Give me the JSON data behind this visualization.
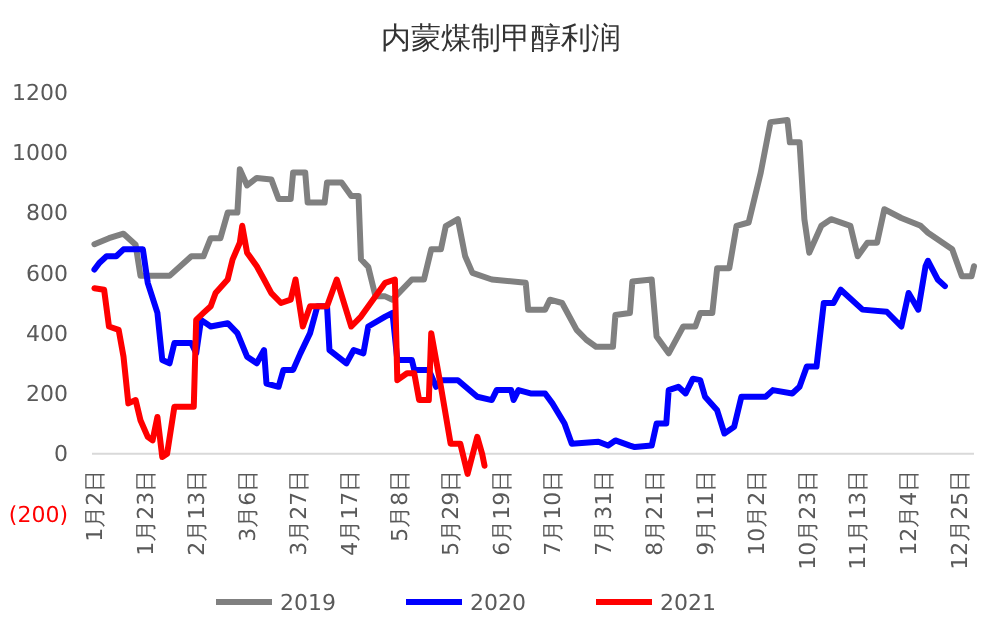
{
  "chart_data": {
    "type": "line",
    "title": "内蒙煤制甲醇利润",
    "legend": "bottom",
    "line_style": "solid",
    "xlim": [
      "--01-01",
      "--12-31"
    ],
    "xticks": [
      {
        "value": "--01-02",
        "label": "1月2日"
      },
      {
        "value": "--01-23",
        "label": "1月23日"
      },
      {
        "value": "--02-13",
        "label": "2月13日"
      },
      {
        "value": "--03-06",
        "label": "3月6日"
      },
      {
        "value": "--03-27",
        "label": "3月27日"
      },
      {
        "value": "--04-17",
        "label": "4月17日"
      },
      {
        "value": "--05-08",
        "label": "5月8日"
      },
      {
        "value": "--05-29",
        "label": "5月29日"
      },
      {
        "value": "--06-19",
        "label": "6月19日"
      },
      {
        "value": "--07-10",
        "label": "7月10日"
      },
      {
        "value": "--07-31",
        "label": "7月31日"
      },
      {
        "value": "--08-21",
        "label": "8月21日"
      },
      {
        "value": "--09-11",
        "label": "9月11日"
      },
      {
        "value": "--10-02",
        "label": "10月2日"
      },
      {
        "value": "--10-23",
        "label": "10月23日"
      },
      {
        "value": "--11-13",
        "label": "11月13日"
      },
      {
        "value": "--12-04",
        "label": "12月4日"
      },
      {
        "value": "--12-25",
        "label": "12月25日"
      }
    ],
    "ylim": [
      -200,
      1200
    ],
    "yticks": [
      {
        "value": -200,
        "label": "(200)"
      },
      0,
      200,
      400,
      600,
      800,
      1000,
      1200
    ],
    "series": [
      {
        "name": "2019",
        "color": "#808080",
        "x": [
          "--01-02",
          "--01-08",
          "--01-14",
          "--01-19",
          "--01-21",
          "--02-02",
          "--02-11",
          "--02-16",
          "--02-19",
          "--02-23",
          "--02-26",
          "--03-02",
          "--03-03",
          "--03-06",
          "--03-10",
          "--03-16",
          "--03-19",
          "--03-24",
          "--03-25",
          "--03-30",
          "--03-31",
          "--04-07",
          "--04-08",
          "--04-14",
          "--04-18",
          "--04-21",
          "--04-22",
          "--04-25",
          "--04-28",
          "--05-02",
          "--05-05",
          "--05-13",
          "--05-18",
          "--05-21",
          "--05-25",
          "--05-27",
          "--06-01",
          "--06-04",
          "--06-07",
          "--06-15",
          "--06-29",
          "--06-30",
          "--07-07",
          "--07-09",
          "--07-14",
          "--07-20",
          "--07-24",
          "--07-28",
          "--08-04",
          "--08-05",
          "--08-11",
          "--08-12",
          "--08-20",
          "--08-22",
          "--08-27",
          "--09-02",
          "--09-07",
          "--09-09",
          "--09-14",
          "--09-16",
          "--09-21",
          "--09-24",
          "--09-29",
          "--10-04",
          "--10-08",
          "--10-15",
          "--10-16",
          "--10-20",
          "--10-22",
          "--10-24",
          "--10-29",
          "--11-02",
          "--11-10",
          "--11-13",
          "--11-17",
          "--11-21",
          "--11-24",
          "--12-01",
          "--12-09",
          "--12-12",
          "--12-22",
          "--12-26",
          "--12-30",
          "--12-31"
        ],
        "values": [
          695,
          715,
          730,
          693,
          590,
          590,
          655,
          655,
          715,
          715,
          800,
          800,
          944,
          890,
          915,
          910,
          845,
          845,
          933,
          933,
          833,
          833,
          900,
          900,
          855,
          855,
          645,
          620,
          522,
          522,
          511,
          578,
          578,
          678,
          678,
          755,
          778,
          655,
          600,
          578,
          567,
          478,
          478,
          511,
          500,
          411,
          378,
          355,
          355,
          460,
          467,
          571,
          578,
          389,
          333,
          422,
          422,
          467,
          467,
          615,
          615,
          756,
          767,
          933,
          1100,
          1107,
          1033,
          1033,
          778,
          667,
          756,
          778,
          756,
          655,
          700,
          700,
          811,
          782,
          756,
          733,
          678,
          589,
          589,
          622
        ]
      },
      {
        "name": "2020",
        "color": "#0000ff",
        "x": [
          "--01-02",
          "--01-04",
          "--01-07",
          "--01-11",
          "--01-14",
          "--01-22",
          "--01-24",
          "--01-28",
          "--01-30",
          "--02-02",
          "--02-04",
          "--02-11",
          "--02-13",
          "--02-15",
          "--02-19",
          "--02-26",
          "--03-02",
          "--03-06",
          "--03-10",
          "--03-13",
          "--03-14",
          "--03-19",
          "--03-21",
          "--03-25",
          "--03-28",
          "--04-01",
          "--04-04",
          "--04-08",
          "--04-09",
          "--04-16",
          "--04-19",
          "--04-23",
          "--04-25",
          "--05-02",
          "--05-05",
          "--05-07",
          "--05-13",
          "--05-14",
          "--05-20",
          "--05-23",
          "--05-25",
          "--06-01",
          "--06-09",
          "--06-15",
          "--06-17",
          "--06-23",
          "--06-24",
          "--06-26",
          "--07-01",
          "--07-07",
          "--07-10",
          "--07-15",
          "--07-18",
          "--07-29",
          "--08-02",
          "--08-05",
          "--08-11",
          "--08-13",
          "--08-20",
          "--08-22",
          "--08-26",
          "--08-27",
          "--08-31",
          "--09-03",
          "--09-06",
          "--09-09",
          "--09-11",
          "--09-16",
          "--09-19",
          "--09-23",
          "--09-26",
          "--10-06",
          "--10-09",
          "--10-17",
          "--10-20",
          "--10-23",
          "--10-27",
          "--10-30",
          "--11-03",
          "--11-06",
          "--11-15",
          "--11-25",
          "--12-01",
          "--12-04",
          "--12-08",
          "--12-11",
          "--12-12",
          "--12-16",
          "--12-19"
        ],
        "values": [
          611,
          633,
          655,
          655,
          678,
          678,
          567,
          467,
          311,
          300,
          367,
          367,
          333,
          444,
          422,
          433,
          400,
          322,
          300,
          344,
          233,
          222,
          278,
          278,
          333,
          400,
          489,
          489,
          344,
          300,
          344,
          333,
          422,
          455,
          467,
          311,
          311,
          278,
          278,
          222,
          244,
          244,
          189,
          178,
          211,
          211,
          178,
          211,
          200,
          200,
          167,
          100,
          33,
          40,
          27,
          44,
          27,
          22,
          27,
          100,
          100,
          211,
          222,
          200,
          249,
          244,
          189,
          144,
          67,
          89,
          189,
          189,
          211,
          200,
          222,
          289,
          289,
          500,
          500,
          544,
          478,
          471,
          422,
          533,
          478,
          622,
          640,
          578,
          556
        ]
      },
      {
        "name": "2021",
        "color": "#ff0000",
        "x": [
          "--01-02",
          "--01-06",
          "--01-08",
          "--01-12",
          "--01-14",
          "--01-16",
          "--01-19",
          "--01-21",
          "--01-24",
          "--01-26",
          "--01-28",
          "--01-30",
          "--02-01",
          "--02-04",
          "--02-12",
          "--02-13",
          "--02-16",
          "--02-19",
          "--02-21",
          "--02-26",
          "--02-28",
          "--03-03",
          "--03-04",
          "--03-06",
          "--03-10",
          "--03-13",
          "--03-16",
          "--03-20",
          "--03-24",
          "--03-26",
          "--03-29",
          "--04-01",
          "--04-08",
          "--04-12",
          "--04-18",
          "--04-22",
          "--04-26",
          "--05-02",
          "--05-06",
          "--05-07",
          "--05-11",
          "--05-14",
          "--05-16",
          "--05-20",
          "--05-21",
          "--05-25",
          "--05-29",
          "--06-02",
          "--06-05",
          "--06-09",
          "--06-11",
          "--06-12"
        ],
        "values": [
          549,
          544,
          422,
          411,
          322,
          167,
          178,
          111,
          56,
          44,
          122,
          -11,
          0,
          156,
          156,
          444,
          467,
          489,
          533,
          578,
          644,
          700,
          756,
          667,
          622,
          578,
          533,
          500,
          511,
          578,
          422,
          489,
          489,
          578,
          422,
          455,
          500,
          567,
          578,
          244,
          267,
          267,
          178,
          178,
          400,
          222,
          33,
          33,
          -67,
          56,
          0,
          -40
        ]
      }
    ]
  }
}
